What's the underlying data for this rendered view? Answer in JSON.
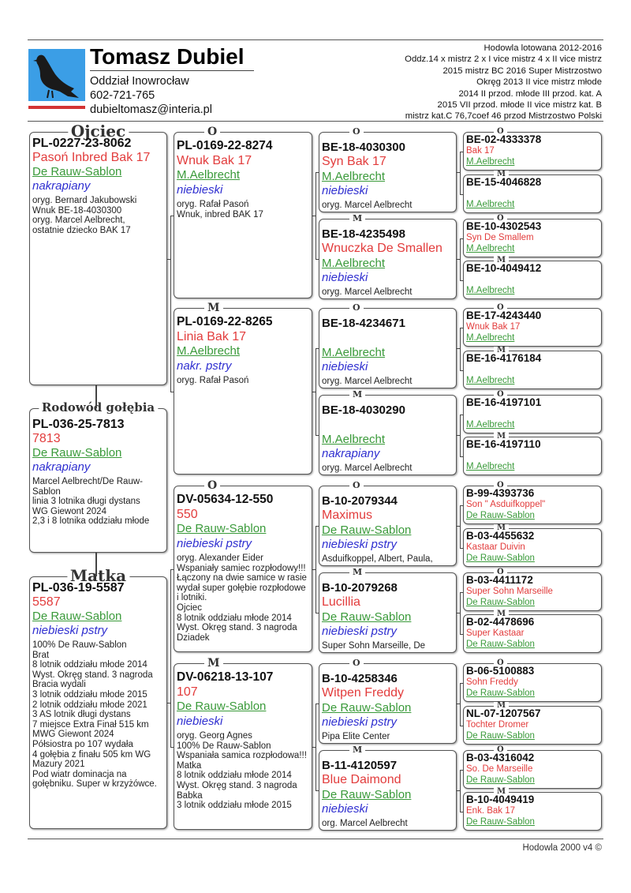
{
  "header": {
    "owner_name": "Tomasz Dubiel",
    "branch": "Oddział Inowrocław",
    "phone": "602-721-765",
    "email": "dubieltomasz@interia.pl",
    "achievements": [
      "Hodowla lotowana 2012-2016",
      "Oddz.14 x mistrz 2 x I vice mistrz 4 x II vice mistrz",
      "2015 mistrz BC 2016 Super Mistrzostwo",
      "Okręg 2013 II vice mistrz młode",
      "2014 II przod. młode III przod. kat. A",
      "2015 VII przod. młode II vice mistrz kat. B",
      "mistrz kat.C 76,7coef 46 przod Mistrzostwo Polski"
    ],
    "logo_icon": "pigeon-icon"
  },
  "colors": {
    "name": "#e23c3c",
    "breeder": "#3a9a3a",
    "color": "#2f2fd0",
    "logo": "#3b9ee6",
    "logo_bar": "#d43434"
  },
  "subject": {
    "label": "Rodowód gołębia",
    "ring": "PL-036-25-7813",
    "name": "7813",
    "breeder": "De Rauw-Sablon",
    "color": "nakrapiany",
    "notes": [
      "Marcel Aelbrecht/De Rauw-Sablon",
      "linia 3 lotnika długi dystans",
      "WG Giewont 2024",
      "2,3 i 8 lotnika oddziału młode"
    ]
  },
  "father": {
    "label": "Ojciec",
    "ring": "PL-0227-23-8062",
    "name": "Pasoń Inbred Bak 17",
    "breeder": "De Rauw-Sablon",
    "color": "nakrapiany",
    "notes": [
      "oryg. Bernard Jakubowski",
      "Wnuk BE-18-4030300",
      "oryg. Marcel Aelbrecht,",
      "ostatnie dziecko BAK 17"
    ]
  },
  "mother": {
    "label": "Matka",
    "ring": "PL-036-19-5587",
    "name": "5587",
    "breeder": "De Rauw-Sablon",
    "color": "niebieski pstry",
    "notes": [
      "100% De Rauw-Sablon",
      "Brat",
      "8 lotnik oddziału młode 2014",
      "Wyst. Okręg stand. 3 nagroda",
      "Bracia wydali",
      "3 lotnik oddziału młode 2015",
      "2 lotnik oddziału młode 2021",
      "3 AS lotnik długi dystans",
      "7 miejsce Extra Finał 515 km",
      "MWG Giewont 2024",
      "Półsiostra po 107 wydała",
      "4 gołębia z finału 505 km WG",
      "Mazury 2021",
      "Pod wiatr dominacja na gołębniku. Super w krzyżówce."
    ]
  },
  "gen2": [
    {
      "label": "O",
      "ring": "PL-0169-22-8274",
      "name": "Wnuk Bak 17",
      "breeder": "M.Aelbrecht",
      "color": "niebieski",
      "notes": [
        "oryg. Rafał Pasoń",
        "Wnuk, inbred BAK 17"
      ]
    },
    {
      "label": "M",
      "ring": "PL-0169-22-8265",
      "name": "Linia Bak 17",
      "breeder": "M.Aelbrecht",
      "color": "nakr. pstry",
      "notes": [
        "oryg. Rafał Pasoń"
      ]
    },
    {
      "label": "O",
      "ring": "DV-05634-12-550",
      "name": "550",
      "breeder": "De Rauw-Sablon",
      "color": "niebieski pstry",
      "notes": [
        "oryg. Alexander Eider",
        "Wspaniały samiec rozpłodowy!!! Łączony na dwie samice w rasie wydał super gołębie rozpłodowe i lotniki.",
        "Ojciec",
        "8 lotnik oddziału młode 2014",
        "Wyst. Okręg stand. 3 nagroda",
        "Dziadek"
      ]
    },
    {
      "label": "M",
      "ring": "DV-06218-13-107",
      "name": "107",
      "breeder": "De Rauw-Sablon",
      "color": "niebieski",
      "notes": [
        "oryg. Georg Agnes",
        "100% De Rauw-Sablon",
        "Wspaniała samica rozpłodowa!!!",
        "Matka",
        "8 lotnik oddziału młode 2014",
        "Wyst. Okręg stand. 3 nagroda",
        "Babka",
        "3 lotnik oddziału młode 2015"
      ]
    }
  ],
  "gen3": [
    {
      "label": "O",
      "ring": "BE-18-4030300",
      "name": "Syn Bak 17",
      "breeder": "M.Aelbrecht",
      "color": "niebieski",
      "notes": [
        "oryg. Marcel Aelbrecht"
      ]
    },
    {
      "label": "M",
      "ring": "BE-18-4235498",
      "name": "Wnuczka De Smallen",
      "breeder": "M.Aelbrecht",
      "color": "niebieski",
      "notes": [
        "oryg. Marcel Aelbrecht"
      ]
    },
    {
      "label": "O",
      "ring": "BE-18-4234671",
      "name": "",
      "breeder": "M.Aelbrecht",
      "color": "niebieski",
      "notes": [
        "oryg. Marcel Aelbrecht"
      ]
    },
    {
      "label": "M",
      "ring": "BE-18-4030290",
      "name": "",
      "breeder": "M.Aelbrecht",
      "color": "nakrapiany",
      "notes": [
        "oryg. Marcel Aelbrecht"
      ]
    },
    {
      "label": "O",
      "ring": "B-10-2079344",
      "name": "Maximus",
      "breeder": "De Rauw-Sablon",
      "color": "niebieski pstry",
      "notes": [
        "Asduifkoppel, Albert, Paula,"
      ]
    },
    {
      "label": "M",
      "ring": "B-10-2079268",
      "name": "Lucillia",
      "breeder": "De Rauw-Sablon",
      "color": "niebieski pstry",
      "notes": [
        "Super Sohn Marseille, De"
      ]
    },
    {
      "label": "O",
      "ring": "B-10-4258346",
      "name": "Witpen Freddy",
      "breeder": "De Rauw-Sablon",
      "color": "niebieski pstry",
      "notes": [
        "Pipa Elite Center"
      ]
    },
    {
      "label": "M",
      "ring": "B-11-4120597",
      "name": "Blue Daimond",
      "breeder": "De Rauw-Sablon",
      "color": "niebieski",
      "notes": [
        "org. Marcel Aelbrecht"
      ]
    }
  ],
  "gen4": [
    {
      "label": "O",
      "ring": "BE-02-4333378",
      "name": "Bak 17",
      "breeder": "M.Aelbrecht"
    },
    {
      "label": "M",
      "ring": "BE-15-4046828",
      "name": "",
      "breeder": "M.Aelbrecht"
    },
    {
      "label": "O",
      "ring": "BE-10-4302543",
      "name": "Syn De Smallem",
      "breeder": "M.Aelbrecht"
    },
    {
      "label": "M",
      "ring": "BE-10-4049412",
      "name": "",
      "breeder": "M.Aelbrecht"
    },
    {
      "label": "O",
      "ring": "BE-17-4243440",
      "name": "Wnuk Bak 17",
      "breeder": "M.Aelbrecht"
    },
    {
      "label": "M",
      "ring": "BE-16-4176184",
      "name": "",
      "breeder": "M.Aelbrecht"
    },
    {
      "label": "O",
      "ring": "BE-16-4197101",
      "name": "",
      "breeder": "M.Aelbrecht"
    },
    {
      "label": "M",
      "ring": "BE-16-4197110",
      "name": "",
      "breeder": "M.Aelbrecht"
    },
    {
      "label": "O",
      "ring": "B-99-4393736",
      "name": "Son \" Asduifkoppel\"",
      "breeder": "De Rauw-Sablon"
    },
    {
      "label": "M",
      "ring": "B-03-4455632",
      "name": "Kastaar Duivin",
      "breeder": "De Rauw-Sablon"
    },
    {
      "label": "O",
      "ring": "B-03-4411172",
      "name": "Super Sohn Marseille",
      "breeder": "De Rauw-Sablon"
    },
    {
      "label": "M",
      "ring": "B-02-4478696",
      "name": "Super Kastaar",
      "breeder": "De Rauw-Sablon"
    },
    {
      "label": "O",
      "ring": "B-06-5100883",
      "name": "Sohn Freddy",
      "breeder": "De Rauw-Sablon"
    },
    {
      "label": "M",
      "ring": "NL-07-1207567",
      "name": "Tochter Dromer",
      "breeder": "De Rauw-Sablon"
    },
    {
      "label": "O",
      "ring": "B-03-4316042",
      "name": "So. De Marseille",
      "breeder": "De Rauw-Sablon"
    },
    {
      "label": "M",
      "ring": "B-10-4049419",
      "name": "Enk. Bak 17",
      "breeder": "De Rauw-Sablon"
    }
  ],
  "footer": {
    "text": "Hodowla 2000 v4 ©"
  }
}
